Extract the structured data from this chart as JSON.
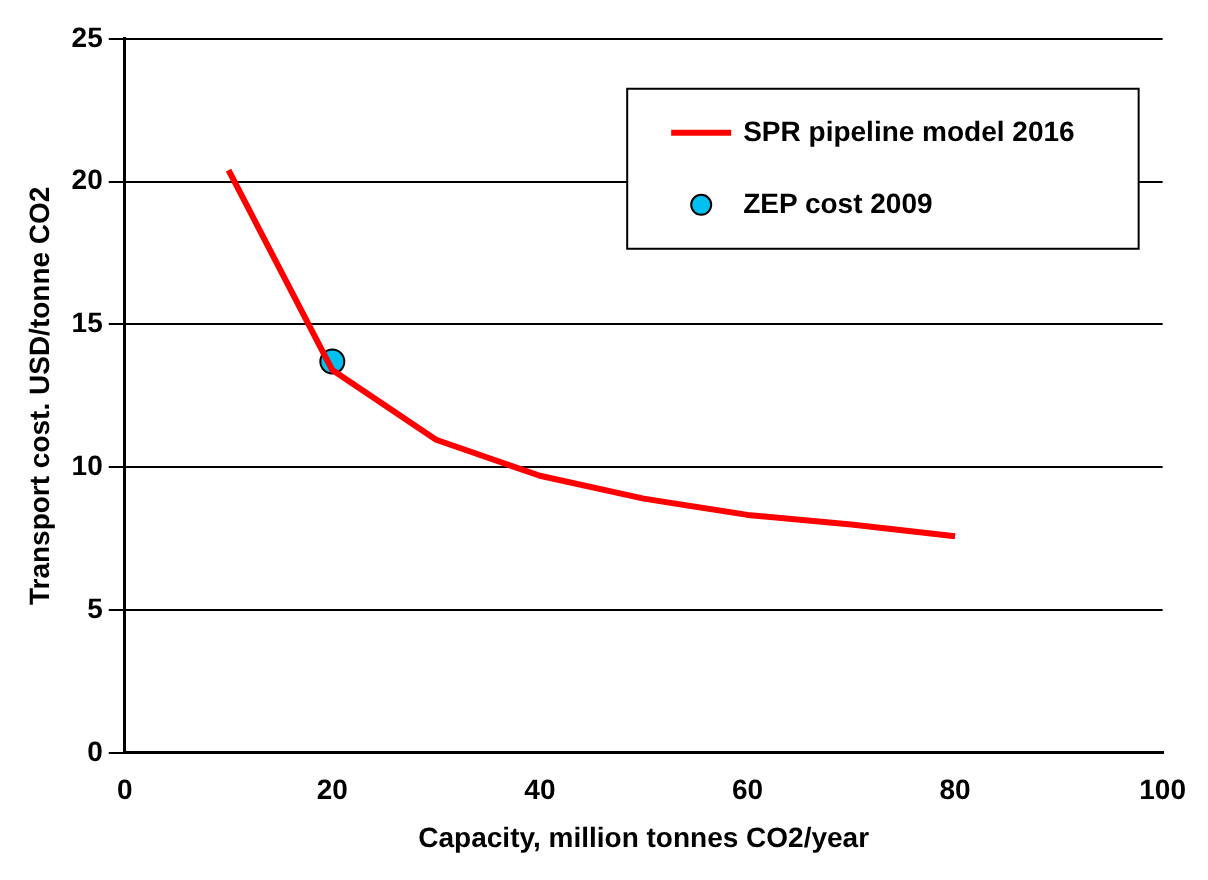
{
  "chart_data": {
    "type": "line",
    "xlabel": "Capacity, million tonnes CO2/year",
    "ylabel": "Transport cost. USD/tonne CO2",
    "xlim": [
      0,
      100
    ],
    "xticks": [
      0,
      20,
      40,
      60,
      80,
      100
    ],
    "ylim": [
      0,
      25
    ],
    "yticks": [
      0,
      5,
      10,
      15,
      20,
      25
    ],
    "grid": "y",
    "legend": "top right",
    "series": [
      {
        "name": "SPR pipeline model 2016",
        "type": "line",
        "color": "#ff0000",
        "x": [
          10,
          20,
          30,
          40,
          50,
          60,
          70,
          80
        ],
        "values": [
          20.4,
          13.4,
          10.96,
          9.7,
          8.9,
          8.33,
          7.99,
          7.58
        ],
        "marker": "none"
      },
      {
        "name": "ZEP cost 2009",
        "type": "scatter",
        "color": "#00c0f0",
        "x": [
          20
        ],
        "values": [
          13.7
        ],
        "marker": "circle"
      }
    ]
  }
}
